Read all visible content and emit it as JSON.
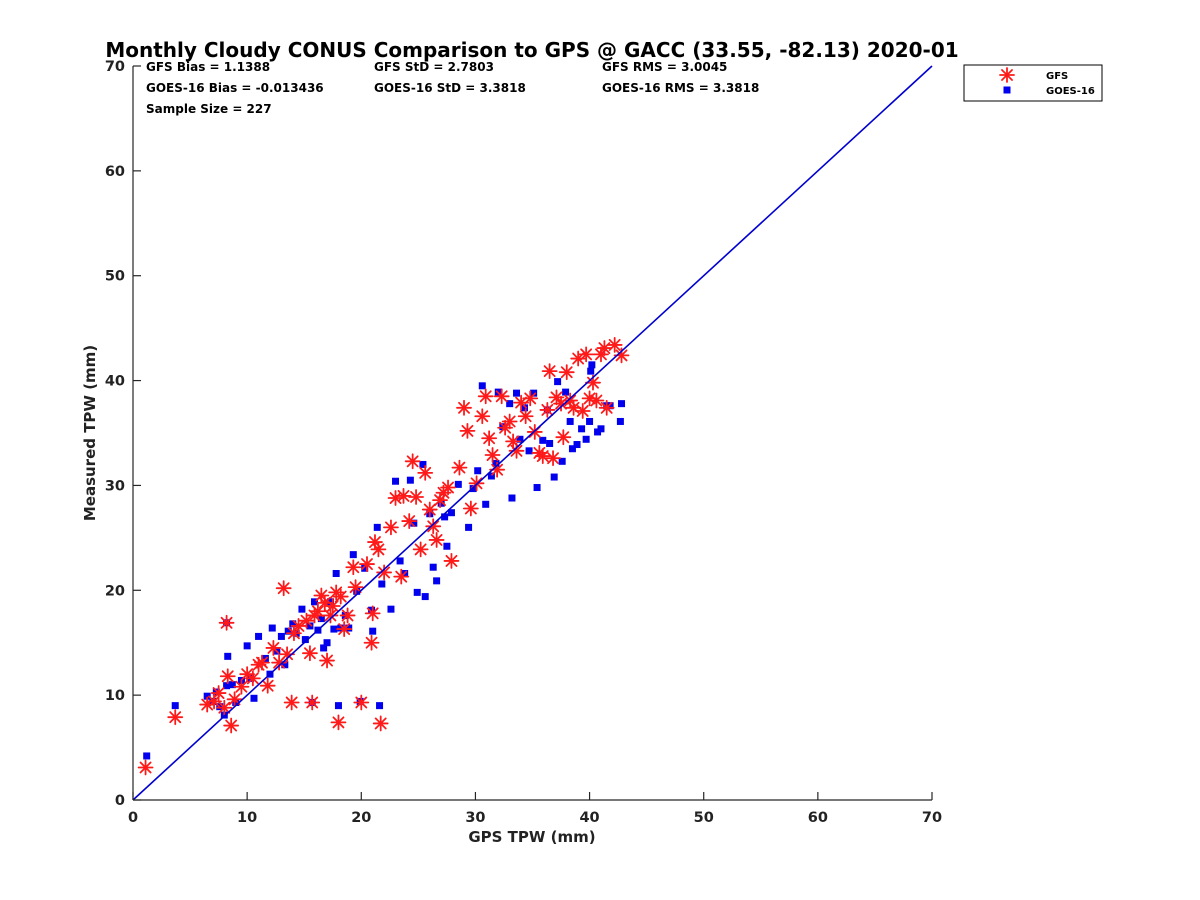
{
  "colors": {
    "gfs": "#ff1a1a",
    "goes": "#0000ee",
    "line": "#0000d0",
    "axis": "#262626"
  },
  "chart_data": {
    "type": "scatter",
    "title": "Monthly Cloudy CONUS Comparison to GPS @ GACC (33.55, -82.13) 2020-01",
    "xlabel": "GPS TPW (mm)",
    "ylabel": "Measured TPW (mm)",
    "xlim": [
      0,
      70
    ],
    "ylim": [
      0,
      70
    ],
    "xticks": [
      "0",
      "10",
      "20",
      "30",
      "40",
      "50",
      "60",
      "70"
    ],
    "yticks": [
      "0",
      "10",
      "20",
      "30",
      "40",
      "50",
      "60",
      "70"
    ],
    "grid": false,
    "legend_position": "top-right outside",
    "stats": [
      "GFS Bias = 1.1388",
      "GFS StD = 2.7803",
      "GFS RMS = 3.0045",
      "GOES-16 Bias = -0.013436",
      "GOES-16 StD = 3.3818",
      "GOES-16 RMS = 3.3818",
      "Sample Size = 227"
    ],
    "reference_line": {
      "x": [
        0,
        70
      ],
      "y": [
        0,
        70
      ]
    },
    "series": [
      {
        "name": "GFS",
        "marker": "asterisk",
        "points": [
          [
            1.1,
            3.1
          ],
          [
            3.7,
            7.9
          ],
          [
            6.5,
            9.1
          ],
          [
            7.1,
            9.4
          ],
          [
            7.5,
            10.2
          ],
          [
            8.0,
            8.8
          ],
          [
            8.3,
            11.8
          ],
          [
            8.2,
            16.9
          ],
          [
            8.6,
            7.1
          ],
          [
            8.9,
            9.6
          ],
          [
            9.5,
            10.8
          ],
          [
            10.0,
            12.0
          ],
          [
            10.5,
            11.6
          ],
          [
            11.0,
            12.9
          ],
          [
            11.3,
            13.1
          ],
          [
            11.8,
            10.9
          ],
          [
            12.3,
            14.5
          ],
          [
            12.8,
            13.1
          ],
          [
            13.2,
            20.2
          ],
          [
            13.5,
            13.9
          ],
          [
            13.9,
            9.3
          ],
          [
            14.1,
            15.9
          ],
          [
            14.5,
            16.6
          ],
          [
            15.2,
            17.1
          ],
          [
            15.5,
            14.0
          ],
          [
            15.7,
            9.3
          ],
          [
            15.9,
            17.6
          ],
          [
            16.2,
            18.0
          ],
          [
            16.5,
            19.5
          ],
          [
            16.8,
            18.8
          ],
          [
            17.0,
            13.3
          ],
          [
            17.3,
            17.6
          ],
          [
            17.5,
            18.5
          ],
          [
            17.8,
            19.8
          ],
          [
            18.0,
            7.4
          ],
          [
            18.2,
            19.4
          ],
          [
            18.5,
            16.3
          ],
          [
            18.8,
            17.6
          ],
          [
            19.3,
            22.2
          ],
          [
            19.5,
            20.3
          ],
          [
            20.0,
            9.3
          ],
          [
            20.5,
            22.5
          ],
          [
            20.9,
            15.0
          ],
          [
            21.0,
            17.8
          ],
          [
            21.2,
            24.6
          ],
          [
            21.5,
            23.9
          ],
          [
            21.7,
            7.3
          ],
          [
            22.0,
            21.7
          ],
          [
            22.6,
            26.0
          ],
          [
            23.0,
            28.8
          ],
          [
            23.5,
            21.3
          ],
          [
            23.7,
            29.0
          ],
          [
            24.2,
            26.6
          ],
          [
            24.5,
            32.3
          ],
          [
            24.8,
            28.9
          ],
          [
            25.2,
            23.9
          ],
          [
            25.6,
            31.2
          ],
          [
            26.0,
            27.7
          ],
          [
            26.3,
            26.1
          ],
          [
            26.6,
            24.8
          ],
          [
            26.9,
            28.6
          ],
          [
            27.2,
            29.3
          ],
          [
            27.6,
            29.8
          ],
          [
            27.9,
            22.8
          ],
          [
            28.6,
            31.7
          ],
          [
            29.0,
            37.4
          ],
          [
            29.3,
            35.2
          ],
          [
            29.6,
            27.8
          ],
          [
            30.1,
            30.2
          ],
          [
            30.6,
            36.6
          ],
          [
            30.9,
            38.5
          ],
          [
            31.2,
            34.5
          ],
          [
            31.5,
            32.9
          ],
          [
            31.9,
            31.5
          ],
          [
            32.3,
            38.5
          ],
          [
            32.6,
            35.5
          ],
          [
            33.0,
            36.1
          ],
          [
            33.3,
            34.2
          ],
          [
            33.6,
            33.3
          ],
          [
            34.0,
            37.9
          ],
          [
            34.4,
            36.6
          ],
          [
            34.8,
            38.3
          ],
          [
            35.2,
            35.1
          ],
          [
            35.6,
            33.1
          ],
          [
            35.9,
            32.8
          ],
          [
            36.3,
            37.2
          ],
          [
            36.5,
            40.9
          ],
          [
            36.8,
            32.6
          ],
          [
            37.1,
            38.4
          ],
          [
            37.5,
            37.8
          ],
          [
            37.7,
            34.6
          ],
          [
            38.0,
            40.8
          ],
          [
            38.3,
            38.1
          ],
          [
            38.6,
            37.4
          ],
          [
            39.0,
            42.1
          ],
          [
            39.4,
            37.1
          ],
          [
            39.7,
            42.5
          ],
          [
            40.0,
            38.3
          ],
          [
            40.3,
            39.8
          ],
          [
            40.6,
            38.1
          ],
          [
            41.0,
            42.5
          ],
          [
            41.3,
            43.1
          ],
          [
            41.5,
            37.4
          ],
          [
            42.2,
            43.4
          ],
          [
            42.8,
            42.4
          ]
        ]
      },
      {
        "name": "GOES-16",
        "marker": "square",
        "points": [
          [
            1.2,
            4.2
          ],
          [
            3.7,
            9.0
          ],
          [
            6.5,
            9.9
          ],
          [
            7.0,
            9.4
          ],
          [
            7.3,
            10.3
          ],
          [
            7.6,
            8.9
          ],
          [
            8.0,
            8.1
          ],
          [
            8.2,
            10.9
          ],
          [
            8.3,
            13.7
          ],
          [
            8.2,
            16.9
          ],
          [
            8.7,
            11.0
          ],
          [
            9.0,
            9.3
          ],
          [
            9.5,
            11.4
          ],
          [
            10.0,
            14.7
          ],
          [
            10.3,
            11.6
          ],
          [
            10.6,
            9.7
          ],
          [
            11.0,
            15.6
          ],
          [
            11.6,
            13.5
          ],
          [
            12.0,
            12.0
          ],
          [
            12.2,
            16.4
          ],
          [
            12.6,
            14.2
          ],
          [
            13.0,
            15.6
          ],
          [
            13.3,
            12.9
          ],
          [
            13.6,
            16.1
          ],
          [
            14.0,
            16.8
          ],
          [
            14.3,
            15.9
          ],
          [
            14.8,
            18.2
          ],
          [
            15.1,
            15.3
          ],
          [
            15.5,
            16.6
          ],
          [
            15.7,
            9.3
          ],
          [
            15.9,
            18.9
          ],
          [
            16.2,
            16.2
          ],
          [
            16.5,
            17.3
          ],
          [
            16.7,
            14.5
          ],
          [
            17.0,
            15.0
          ],
          [
            17.3,
            18.9
          ],
          [
            17.6,
            16.3
          ],
          [
            17.8,
            21.6
          ],
          [
            18.0,
            9.0
          ],
          [
            18.2,
            16.4
          ],
          [
            18.6,
            17.6
          ],
          [
            18.9,
            16.4
          ],
          [
            19.3,
            23.4
          ],
          [
            19.6,
            19.9
          ],
          [
            19.9,
            9.4
          ],
          [
            20.3,
            22.1
          ],
          [
            20.9,
            18.1
          ],
          [
            21.0,
            16.1
          ],
          [
            21.4,
            26.0
          ],
          [
            21.6,
            9.0
          ],
          [
            21.8,
            20.6
          ],
          [
            22.6,
            18.2
          ],
          [
            23.0,
            30.4
          ],
          [
            23.4,
            22.8
          ],
          [
            23.8,
            21.6
          ],
          [
            24.3,
            30.5
          ],
          [
            24.6,
            26.4
          ],
          [
            24.9,
            19.8
          ],
          [
            25.4,
            32.0
          ],
          [
            25.6,
            19.4
          ],
          [
            26.0,
            27.3
          ],
          [
            26.3,
            22.2
          ],
          [
            26.6,
            20.9
          ],
          [
            27.0,
            28.3
          ],
          [
            27.3,
            27.0
          ],
          [
            27.5,
            24.2
          ],
          [
            27.9,
            27.4
          ],
          [
            28.5,
            30.1
          ],
          [
            29.4,
            26.0
          ],
          [
            29.8,
            29.7
          ],
          [
            30.2,
            31.4
          ],
          [
            30.6,
            39.5
          ],
          [
            30.9,
            28.2
          ],
          [
            31.4,
            30.9
          ],
          [
            31.8,
            32.1
          ],
          [
            32.0,
            38.9
          ],
          [
            32.4,
            35.6
          ],
          [
            33.0,
            37.8
          ],
          [
            33.2,
            28.8
          ],
          [
            33.6,
            38.8
          ],
          [
            33.9,
            34.4
          ],
          [
            34.3,
            37.4
          ],
          [
            34.7,
            33.3
          ],
          [
            35.1,
            38.8
          ],
          [
            35.4,
            29.8
          ],
          [
            35.9,
            34.3
          ],
          [
            36.3,
            37.2
          ],
          [
            36.5,
            34.0
          ],
          [
            36.9,
            30.8
          ],
          [
            37.2,
            39.9
          ],
          [
            37.6,
            32.3
          ],
          [
            37.9,
            38.9
          ],
          [
            38.3,
            36.1
          ],
          [
            38.5,
            33.5
          ],
          [
            38.9,
            33.9
          ],
          [
            39.3,
            35.4
          ],
          [
            39.7,
            34.4
          ],
          [
            40.0,
            36.1
          ],
          [
            40.2,
            41.5
          ],
          [
            40.7,
            35.1
          ],
          [
            41.0,
            35.4
          ],
          [
            41.5,
            37.6
          ],
          [
            42.7,
            36.1
          ],
          [
            42.8,
            37.8
          ],
          [
            41.8,
            37.6
          ],
          [
            40.1,
            40.9
          ]
        ]
      }
    ]
  }
}
